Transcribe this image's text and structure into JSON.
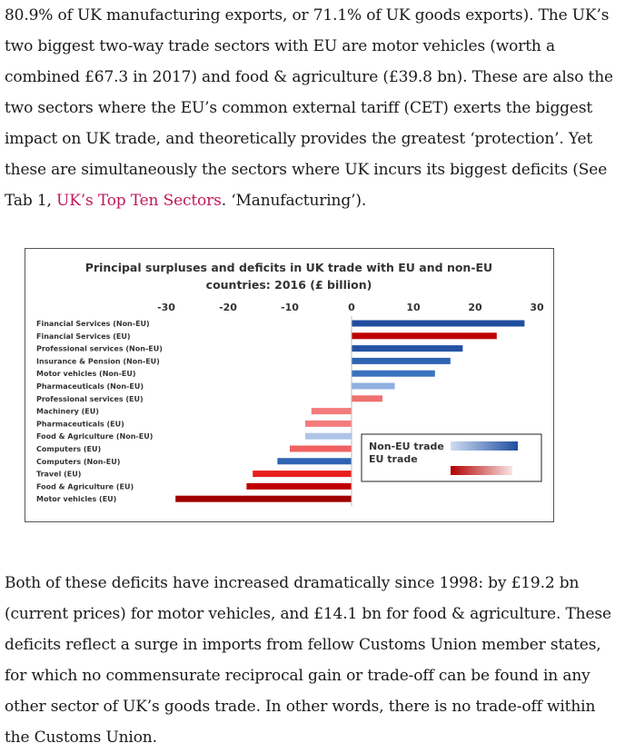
{
  "top_paragraph": {
    "text_before_link": "80.9% of UK manufacturing exports, or 71.1% of UK goods exports). The UK’s two biggest two-way trade sectors with EU are motor vehicles (worth a combined £67.3 in 2017) and food & agriculture (£39.8 bn). These are also the two sectors where the EU’s common external tariff (CET) exerts the biggest impact on UK trade, and theoretically provides the greatest ‘protection’. Yet these are simultaneously the sectors where UK incurs its biggest deficits (See Tab 1, ",
    "link_text": "UK’s Top Ten Sectors",
    "text_after_link": ". ‘Manufacturing’)."
  },
  "bottom_paragraph": {
    "text": "Both of these deficits have increased dramatically since 1998: by £19.2 bn (current prices) for motor vehicles, and £14.1 bn for food & agriculture. These deficits reflect a surge in imports from fellow Customs Union member states, for which no commensurate reciprocal gain or trade-off can be found in any other sector of UK’s goods trade. In other words, there is no trade-off within the Customs Union."
  },
  "chart_data": {
    "type": "bar",
    "orientation": "horizontal",
    "title_line1": "Principal surpluses and deficits in UK trade with EU and non-EU",
    "title_line2": "countries: 2016 (£ billion)",
    "xlim": [
      -30,
      30
    ],
    "xticks": [
      "-30",
      "-20",
      "-10",
      "0",
      "10",
      "20",
      "30"
    ],
    "xtick_values": [
      -30,
      -20,
      -10,
      0,
      10,
      20,
      30
    ],
    "legend_placement": "lower-right",
    "legend": [
      {
        "label": "Non-EU trade",
        "color": "#1f4e9e"
      },
      {
        "label": "EU trade",
        "color": "#c00000"
      }
    ],
    "bars": [
      {
        "label": "Financial Services (Non-EU)",
        "value": 28.0,
        "group": "non-eu",
        "color": "#1f4e9e"
      },
      {
        "label": "Financial Services (EU)",
        "value": 23.5,
        "group": "eu",
        "color": "#c00000"
      },
      {
        "label": "Professional services (Non-EU)",
        "value": 18.0,
        "group": "non-eu",
        "color": "#2453a2"
      },
      {
        "label": "Insurance & Pension (Non-EU)",
        "value": 16.0,
        "group": "non-eu",
        "color": "#2e63b3"
      },
      {
        "label": "Motor vehicles (Non-EU)",
        "value": 13.5,
        "group": "non-eu",
        "color": "#3a72c0"
      },
      {
        "label": "Pharmaceuticals (Non-EU)",
        "value": 7.0,
        "group": "non-eu",
        "color": "#8fb0e0"
      },
      {
        "label": "Professional services (EU)",
        "value": 5.0,
        "group": "eu",
        "color": "#f07070"
      },
      {
        "label": "Machinery (EU)",
        "value": -6.5,
        "group": "eu",
        "color": "#f47c7c"
      },
      {
        "label": "Pharmaceuticals (EU)",
        "value": -7.5,
        "group": "eu",
        "color": "#f47c7c"
      },
      {
        "label": "Food & Agriculture (Non-EU)",
        "value": -7.5,
        "group": "non-eu",
        "color": "#aec4e8"
      },
      {
        "label": "Computers (EU)",
        "value": -10.0,
        "group": "eu",
        "color": "#f06060"
      },
      {
        "label": "Computers (Non-EU)",
        "value": -12.0,
        "group": "non-eu",
        "color": "#2e63b3"
      },
      {
        "label": "Travel (EU)",
        "value": -16.0,
        "group": "eu",
        "color": "#e81e1e"
      },
      {
        "label": "Food & Agriculture (EU)",
        "value": -17.0,
        "group": "eu",
        "color": "#c00000"
      },
      {
        "label": "Motor vehicles (EU)",
        "value": -28.5,
        "group": "eu",
        "color": "#a00000"
      }
    ]
  }
}
